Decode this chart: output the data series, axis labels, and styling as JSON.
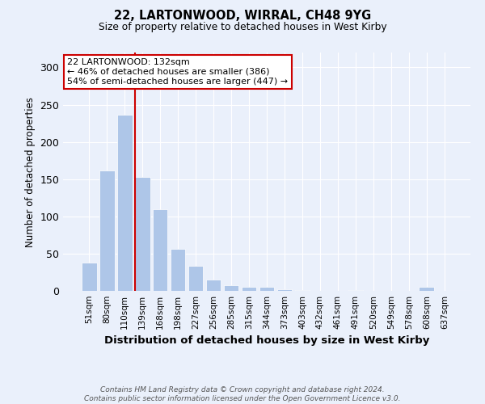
{
  "title1": "22, LARTONWOOD, WIRRAL, CH48 9YG",
  "title2": "Size of property relative to detached houses in West Kirby",
  "xlabel": "Distribution of detached houses by size in West Kirby",
  "ylabel": "Number of detached properties",
  "categories": [
    "51sqm",
    "80sqm",
    "110sqm",
    "139sqm",
    "168sqm",
    "198sqm",
    "227sqm",
    "256sqm",
    "285sqm",
    "315sqm",
    "344sqm",
    "373sqm",
    "403sqm",
    "432sqm",
    "461sqm",
    "491sqm",
    "520sqm",
    "549sqm",
    "578sqm",
    "608sqm",
    "637sqm"
  ],
  "values": [
    38,
    162,
    236,
    153,
    110,
    56,
    34,
    15,
    8,
    5,
    5,
    2,
    1,
    0,
    0,
    1,
    0,
    0,
    0,
    5,
    0
  ],
  "bar_color": "#aec6e8",
  "bar_edge_color": "#ffffff",
  "vline_x_index": 3,
  "vline_color": "#cc0000",
  "annotation_text": "22 LARTONWOOD: 132sqm\n← 46% of detached houses are smaller (386)\n54% of semi-detached houses are larger (447) →",
  "annotation_box_color": "#ffffff",
  "annotation_box_edge_color": "#cc0000",
  "ylim": [
    0,
    320
  ],
  "yticks": [
    0,
    50,
    100,
    150,
    200,
    250,
    300
  ],
  "bg_color": "#eaf0fb",
  "grid_color": "#ffffff",
  "footer": "Contains HM Land Registry data © Crown copyright and database right 2024.\nContains public sector information licensed under the Open Government Licence v3.0."
}
